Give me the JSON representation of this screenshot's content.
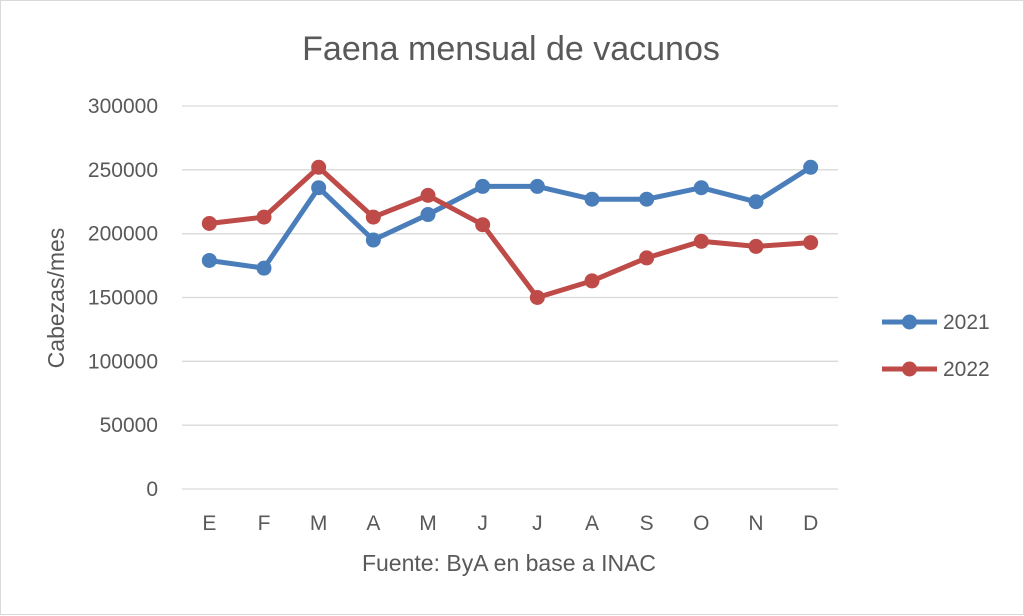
{
  "chart_data": {
    "type": "line",
    "title": "Faena mensual de vacunos",
    "xlabel": "Fuente: ByA en base a INAC",
    "ylabel": "Cabezas/mes",
    "categories": [
      "E",
      "F",
      "M",
      "A",
      "M",
      "J",
      "J",
      "A",
      "S",
      "O",
      "N",
      "D"
    ],
    "ylim": [
      0,
      300000
    ],
    "yticks": [
      "0",
      "50000",
      "100000",
      "150000",
      "200000",
      "250000",
      "300000"
    ],
    "grid": true,
    "legend_position": "right",
    "series": [
      {
        "name": "2021",
        "color": "#4a7ebb",
        "values": [
          179000,
          173000,
          236000,
          195000,
          215000,
          237000,
          237000,
          227000,
          227000,
          236000,
          225000,
          252000
        ]
      },
      {
        "name": "2022",
        "color": "#be4b48",
        "values": [
          208000,
          213000,
          252000,
          213000,
          230000,
          207000,
          150000,
          163000,
          181000,
          194000,
          190000,
          193000
        ]
      }
    ]
  }
}
